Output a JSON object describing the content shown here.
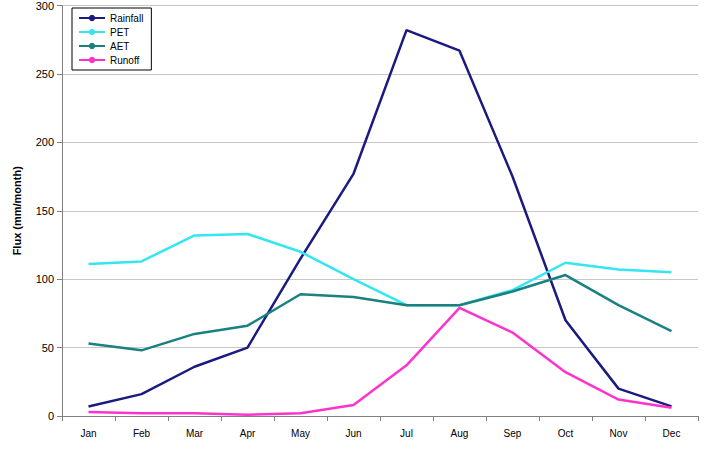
{
  "chart_data": {
    "type": "line",
    "y_label": "Flux (mm/month)",
    "categories": [
      "Jan",
      "Feb",
      "Mar",
      "Apr",
      "May",
      "Jun",
      "Jul",
      "Aug",
      "Sep",
      "Oct",
      "Nov",
      "Dec"
    ],
    "series": [
      {
        "name": "Rainfall",
        "color": "#1a1a80",
        "values": [
          7,
          16,
          36,
          50,
          115,
          177,
          282,
          267,
          175,
          70,
          20,
          7
        ]
      },
      {
        "name": "PET",
        "color": "#33e6f0",
        "values": [
          111,
          113,
          132,
          133,
          120,
          100,
          81,
          81,
          92,
          112,
          107,
          105
        ]
      },
      {
        "name": "AET",
        "color": "#1a8080",
        "values": [
          53,
          48,
          60,
          66,
          89,
          87,
          81,
          81,
          91,
          103,
          81,
          62
        ]
      },
      {
        "name": "Runoff",
        "color": "#ff33cc",
        "values": [
          3,
          2,
          2,
          1,
          2,
          8,
          37,
          79,
          61,
          32,
          12,
          6
        ]
      }
    ],
    "ylim": [
      0,
      300
    ],
    "yticks": [
      0,
      50,
      100,
      150,
      200,
      250,
      300
    ],
    "grid": true,
    "legend": "upper left"
  }
}
